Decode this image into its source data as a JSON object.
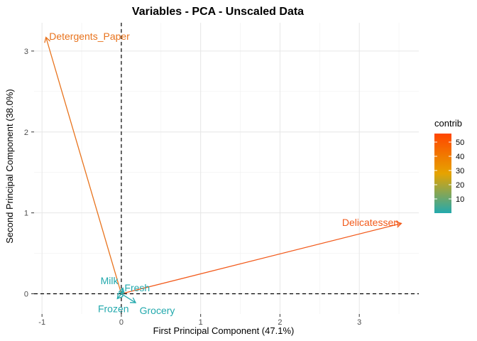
{
  "chart_data": {
    "type": "biplot",
    "title": "Variables - PCA - Unscaled Data",
    "xlabel": "First Principal Component (47.1%)",
    "ylabel": "Second Principal Component (38.0%)",
    "xlim": [
      -1.1,
      3.75
    ],
    "ylim": [
      -0.25,
      3.35
    ],
    "xticks": [
      -1,
      0,
      1,
      2,
      3
    ],
    "yticks": [
      0,
      1,
      2,
      3
    ],
    "grid": true,
    "reference_lines": {
      "x": 0,
      "y": 0,
      "style": "dashed"
    },
    "variables": [
      {
        "name": "Detergents_Paper",
        "x": -0.95,
        "y": 3.17,
        "contrib": 47,
        "color": "#e8731d"
      },
      {
        "name": "Delicatessen",
        "x": 3.53,
        "y": 0.87,
        "contrib": 53,
        "color": "#f25a1b"
      },
      {
        "name": "Milk",
        "x": 0.02,
        "y": 0.07,
        "contrib": 1,
        "color": "#23a9ad"
      },
      {
        "name": "Fresh",
        "x": 0.02,
        "y": 0.03,
        "contrib": 1,
        "color": "#23a9ad"
      },
      {
        "name": "Frozen",
        "x": -0.05,
        "y": -0.06,
        "contrib": 1,
        "color": "#23a9ad"
      },
      {
        "name": "Grocery",
        "x": 0.18,
        "y": -0.11,
        "contrib": 1,
        "color": "#23a9ad"
      }
    ],
    "labels": [
      {
        "text": "Detergents_Paper",
        "x": -0.91,
        "y": 3.14,
        "anchor": "start",
        "color": "#e8731d"
      },
      {
        "text": "Delicatessen",
        "x": 3.5,
        "y": 0.84,
        "anchor": "end",
        "color": "#f25a1b"
      },
      {
        "text": "Milk",
        "x": -0.04,
        "y": 0.12,
        "anchor": "end",
        "color": "#23a9ad"
      },
      {
        "text": "Fresh",
        "x": 0.04,
        "y": 0.03,
        "anchor": "start",
        "color": "#23a9ad"
      },
      {
        "text": "Frozen",
        "x": -0.1,
        "y": -0.23,
        "anchor": "middle",
        "color": "#23a9ad"
      },
      {
        "text": "Grocery",
        "x": 0.23,
        "y": -0.25,
        "anchor": "start",
        "color": "#23a9ad"
      }
    ],
    "legend": {
      "title": "contrib",
      "placement": "right",
      "range": [
        0,
        56
      ],
      "ticks": [
        10,
        20,
        30,
        40,
        50
      ],
      "gradient": [
        "#23a9ad",
        "#e6a300",
        "#ff4500"
      ]
    }
  }
}
